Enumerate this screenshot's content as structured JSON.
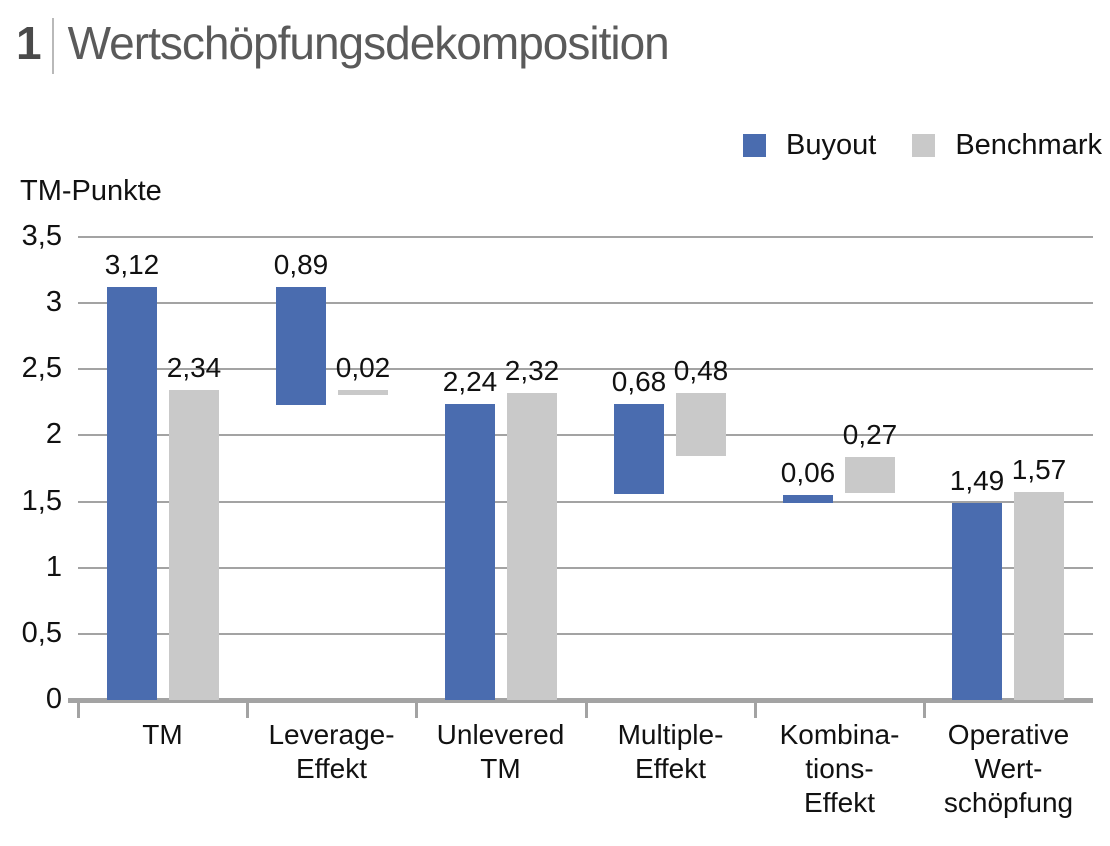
{
  "header": {
    "number": "1",
    "title": "Wertschöpfungsdekomposition"
  },
  "axis_unit_label": "TM-Punkte",
  "legend": [
    {
      "name": "Buyout",
      "color": "#4a6caf"
    },
    {
      "name": "Benchmark",
      "color": "#c9c9c9"
    }
  ],
  "colors": {
    "buyout": "#4a6caf",
    "benchmark": "#c9c9c9",
    "grid": "#a3a3a3",
    "title_gray": "#5a5a5a",
    "text": "#111111"
  },
  "chart_data": {
    "type": "bar",
    "subtype": "floating-waterfall-pairs",
    "title": "Wertschöpfungsdekomposition",
    "ylabel": "TM-Punkte",
    "ylim": [
      0,
      3.5
    ],
    "yticks": [
      "3,5",
      "3",
      "2,5",
      "2",
      "1,5",
      "1",
      "0,5",
      "0"
    ],
    "ytick_values": [
      3.5,
      3,
      2.5,
      2,
      1.5,
      1,
      0.5,
      0
    ],
    "grid": true,
    "legend_position": "top-right",
    "categories": [
      "TM",
      "Leverage-Effekt",
      "Unlevered TM",
      "Multiple-Effekt",
      "Kombinations-Effekt",
      "Operative Wertschöpfung"
    ],
    "category_lines": [
      [
        "TM"
      ],
      [
        "Leverage-",
        "Effekt"
      ],
      [
        "Unlevered",
        "TM"
      ],
      [
        "Multiple-",
        "Effekt"
      ],
      [
        "Kombina-",
        "tions-",
        "Effekt"
      ],
      [
        "Operative",
        "Wert-",
        "schöpfung"
      ]
    ],
    "series": [
      {
        "name": "Buyout",
        "color": "#4a6caf",
        "bars": [
          {
            "from": 0,
            "to": 3.12,
            "value": 3.12,
            "label": "3,12"
          },
          {
            "from": 2.23,
            "to": 3.12,
            "value": 0.89,
            "label": "0,89"
          },
          {
            "from": 0,
            "to": 2.24,
            "value": 2.24,
            "label": "2,24"
          },
          {
            "from": 1.56,
            "to": 2.24,
            "value": 0.68,
            "label": "0,68"
          },
          {
            "from": 1.49,
            "to": 1.55,
            "value": 0.06,
            "label": "0,06"
          },
          {
            "from": 0,
            "to": 1.49,
            "value": 1.49,
            "label": "1,49"
          }
        ]
      },
      {
        "name": "Benchmark",
        "color": "#c9c9c9",
        "bars": [
          {
            "from": 0,
            "to": 2.34,
            "value": 2.34,
            "label": "2,34"
          },
          {
            "from": 2.32,
            "to": 2.34,
            "value": 0.02,
            "label": "0,02"
          },
          {
            "from": 0,
            "to": 2.32,
            "value": 2.32,
            "label": "2,32"
          },
          {
            "from": 1.84,
            "to": 2.32,
            "value": 0.48,
            "label": "0,48"
          },
          {
            "from": 1.57,
            "to": 1.84,
            "value": 0.27,
            "label": "0,27"
          },
          {
            "from": 0,
            "to": 1.57,
            "value": 1.57,
            "label": "1,57"
          }
        ]
      }
    ]
  }
}
